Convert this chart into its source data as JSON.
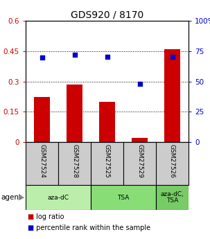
{
  "title": "GDS920 / 8170",
  "samples": [
    "GSM27524",
    "GSM27528",
    "GSM27525",
    "GSM27529",
    "GSM27526"
  ],
  "log_ratios": [
    0.222,
    0.285,
    0.2,
    0.02,
    0.46
  ],
  "percentile_ranks": [
    70.0,
    72.0,
    70.5,
    48.0,
    70.5
  ],
  "bar_color": "#cc0000",
  "dot_color": "#0000cc",
  "left_ylim": [
    0,
    0.6
  ],
  "left_yticks": [
    0,
    0.15,
    0.3,
    0.45,
    0.6
  ],
  "left_ytick_labels": [
    "0",
    "0.15",
    "0.3",
    "0.45",
    "0.6"
  ],
  "right_ylim": [
    0,
    100
  ],
  "right_yticks": [
    0,
    25,
    50,
    75,
    100
  ],
  "right_ytick_labels": [
    "0",
    "25",
    "50",
    "75",
    "100%"
  ],
  "groups": [
    {
      "label": "aza-dC",
      "indices": [
        0,
        1
      ],
      "color": "#bbeeaa"
    },
    {
      "label": "TSA",
      "indices": [
        2,
        3
      ],
      "color": "#88dd77"
    },
    {
      "label": "aza-dC,\nTSA",
      "indices": [
        4
      ],
      "color": "#77cc66"
    }
  ],
  "agent_label": "agent",
  "legend_items": [
    {
      "color": "#cc0000",
      "label": " log ratio"
    },
    {
      "color": "#0000cc",
      "label": " percentile rank within the sample"
    }
  ],
  "background_color": "#ffffff",
  "plot_bg_color": "#ffffff",
  "labels_bg_color": "#cccccc",
  "xlabel_color_left": "#cc0000",
  "xlabel_color_right": "#0000cc",
  "title_fontsize": 10,
  "tick_fontsize": 7.5,
  "sample_fontsize": 6.5,
  "legend_fontsize": 7,
  "bar_width": 0.5
}
